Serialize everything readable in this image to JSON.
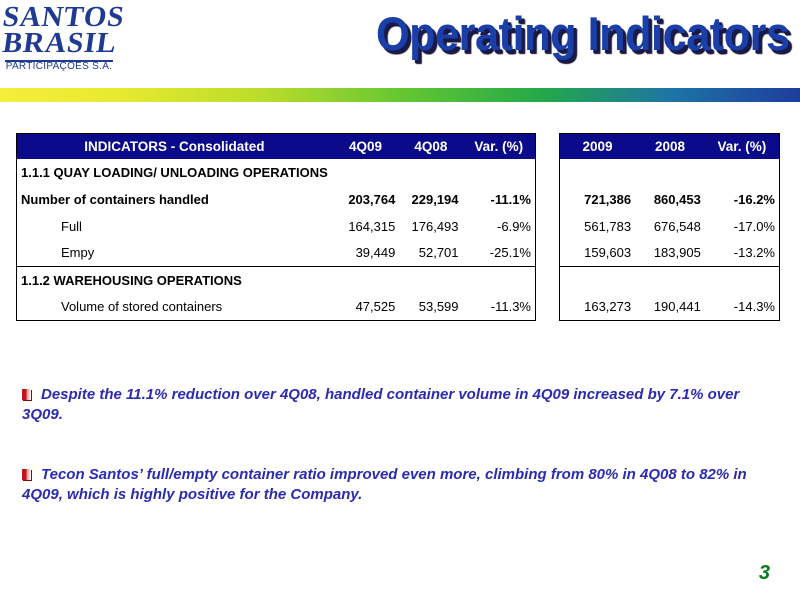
{
  "logo": {
    "line1": "SANTOS",
    "line2": "BRASIL",
    "subtitle": "PARTICIPAÇÕES S.A."
  },
  "title": "Operating Indicators",
  "colors": {
    "title": "#1b3fa8",
    "table_header_bg": "#0a0a8a",
    "bullet_text": "#2b2bb0",
    "bullet_marker": "#c0161b",
    "page_number": "#0a7a1e"
  },
  "table": {
    "headers": [
      "INDICATORS - Consolidated",
      "4Q09",
      "4Q08",
      "Var. (%)"
    ],
    "year_headers": [
      "2009",
      "2008",
      "Var. (%)"
    ],
    "rows": [
      {
        "label": "1.1.1 QUAY LOADING/ UNLOADING OPERATIONS",
        "section": true,
        "q": [
          "",
          "",
          ""
        ],
        "y": [
          "",
          "",
          ""
        ]
      },
      {
        "label": "Number of containers handled",
        "bold": true,
        "q": [
          "203,764",
          "229,194",
          "-11.1%"
        ],
        "y": [
          "721,386",
          "860,453",
          "-16.2%"
        ]
      },
      {
        "label": "Full",
        "indent": true,
        "q": [
          "164,315",
          "176,493",
          "-6.9%"
        ],
        "y": [
          "561,783",
          "676,548",
          "-17.0%"
        ]
      },
      {
        "label": "Empy",
        "indent": true,
        "q": [
          "39,449",
          "52,701",
          "-25.1%"
        ],
        "y": [
          "159,603",
          "183,905",
          "-13.2%"
        ]
      },
      {
        "label": "1.1.2 WAREHOUSING OPERATIONS",
        "section": true,
        "q": [
          "",
          "",
          ""
        ],
        "y": [
          "",
          "",
          ""
        ]
      },
      {
        "label": "Volume of stored containers",
        "indent": true,
        "q": [
          "47,525",
          "53,599",
          "-11.3%"
        ],
        "y": [
          "163,273",
          "190,441",
          "-14.3%"
        ]
      }
    ]
  },
  "bullets": [
    "Despite the 11.1% reduction over 4Q08, handled container volume in 4Q09 increased by 7.1% over 3Q09.",
    "Tecon Santos’ full/empty container ratio improved even more, climbing from 80% in 4Q08 to 82% in 4Q09, which is highly positive for the Company."
  ],
  "page_number": "3"
}
